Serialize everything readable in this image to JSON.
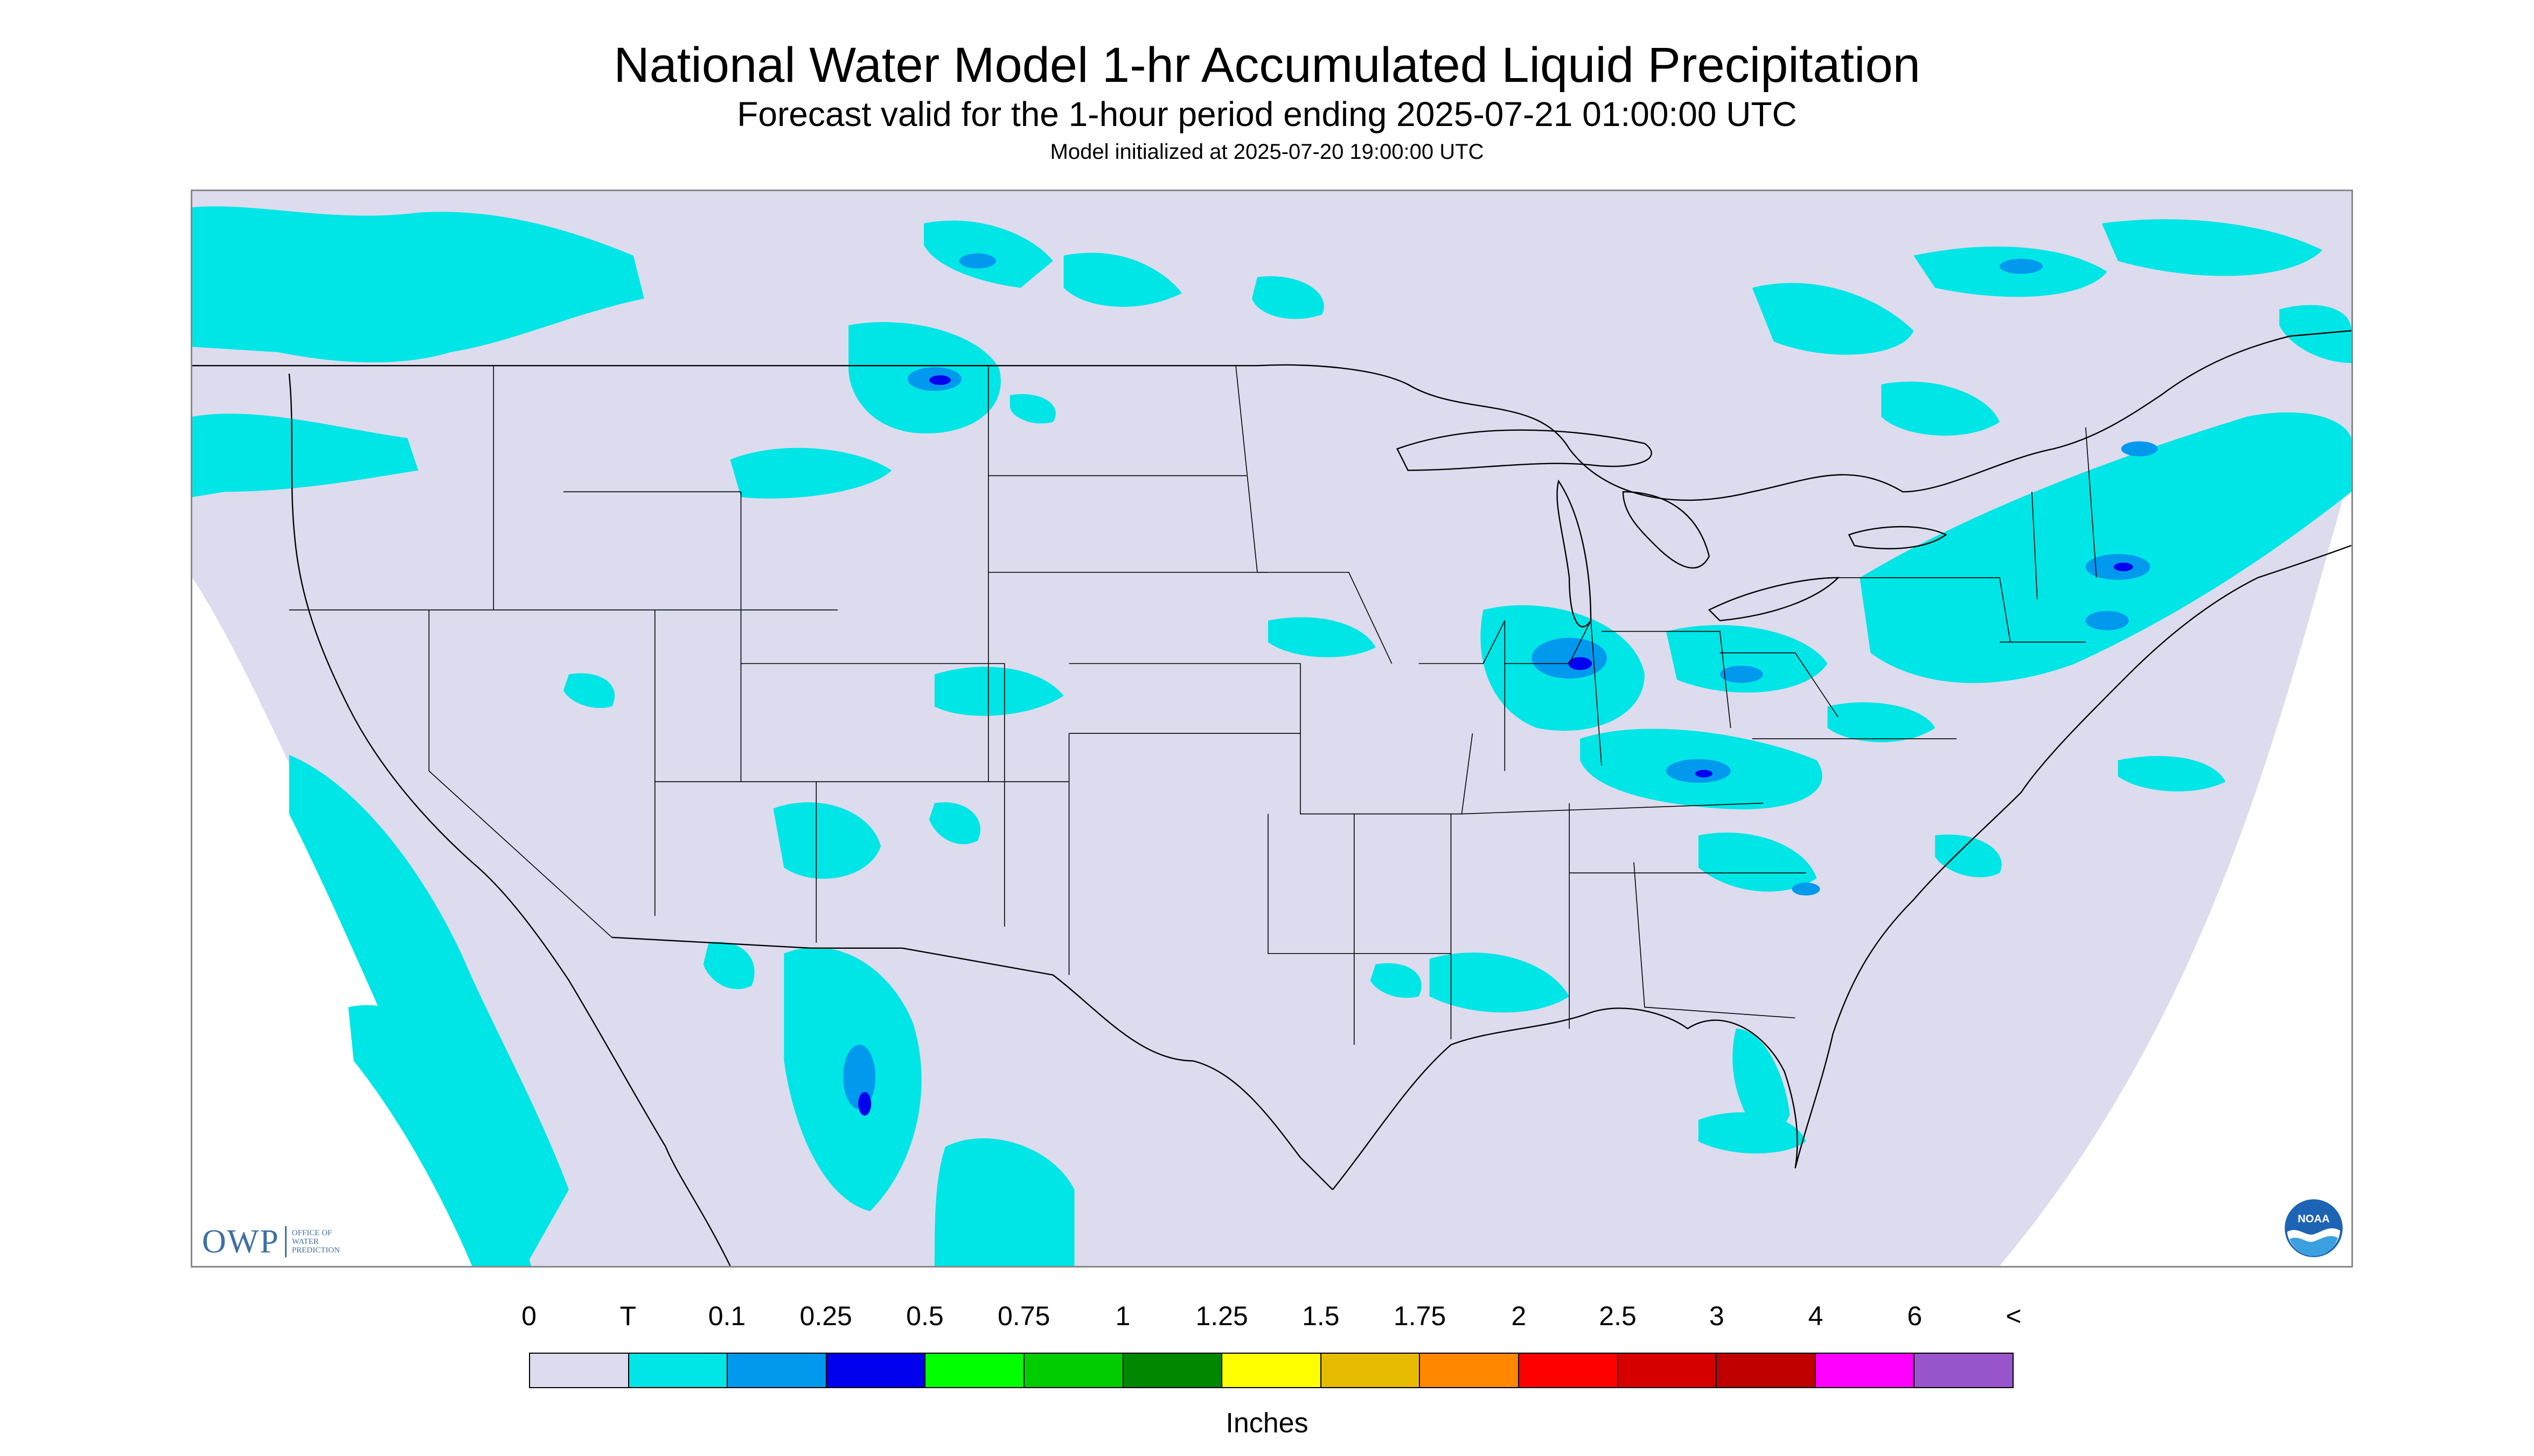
{
  "header": {
    "title": "National Water Model 1-hr Accumulated Liquid Precipitation",
    "subtitle": "Forecast valid for the 1-hour period ending 2025-07-21 01:00:00 UTC",
    "init_line": "Model initialized at 2025-07-20 19:00:00 UTC"
  },
  "map": {
    "background_color": "#dcdcee",
    "outside_domain_color": "#ffffff",
    "trace_color": "#00e5e5",
    "light_color": "#0099ee",
    "moderate_color": "#0000ee",
    "boundary_color": "#000000",
    "precip_regions": [
      "Pacific Northwest and southwest Canada",
      "Montana and northern plains",
      "Offshore Pacific west of California and Baja",
      "Upper Midwest (Iowa, Illinois, Indiana)",
      "Ohio and Tennessee valleys",
      "Southeast and Gulf Coast",
      "Arizona, New Mexico and northern Mexico",
      "Northeast and New England",
      "Ontario and Quebec",
      "Florida peninsula"
    ]
  },
  "logos": {
    "owp_mark": "OWP",
    "owp_text_lines": [
      "Office of",
      "Water",
      "Prediction"
    ],
    "noaa_text": "NOAA"
  },
  "legend": {
    "labels": [
      "0",
      "T",
      "0.1",
      "0.25",
      "0.5",
      "0.75",
      "1",
      "1.25",
      "1.5",
      "1.75",
      "2",
      "2.5",
      "3",
      "4",
      "6",
      "<"
    ],
    "colors": [
      "#dcdcee",
      "#00e5e5",
      "#0099ee",
      "#0000ee",
      "#00ff00",
      "#00cc00",
      "#008800",
      "#ffff00",
      "#e6bb00",
      "#ff8800",
      "#ff0000",
      "#d70000",
      "#c00000",
      "#ff00ff",
      "#9955cc"
    ],
    "units": "Inches"
  }
}
